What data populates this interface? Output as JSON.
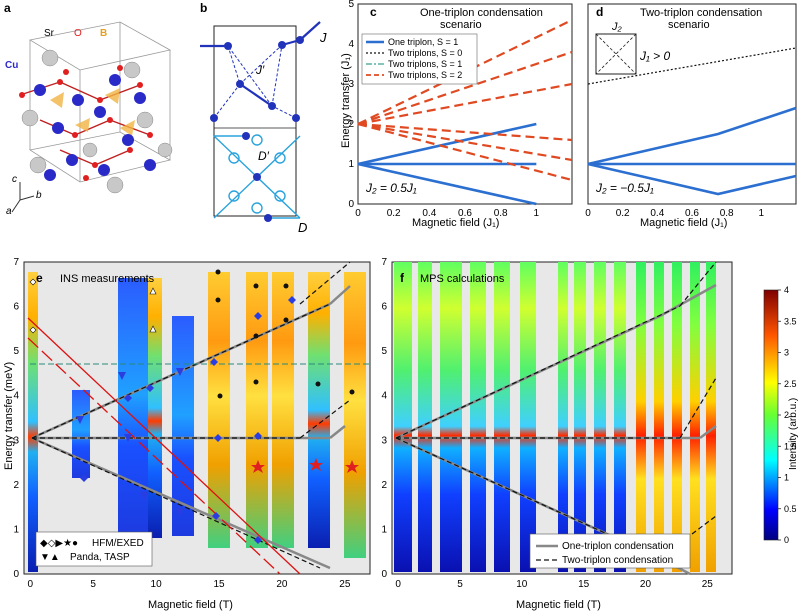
{
  "panels": {
    "a": {
      "letter": "a",
      "atoms": [
        "Sr",
        "O",
        "B",
        "Cu"
      ],
      "axes": [
        "c",
        "b",
        "a"
      ]
    },
    "b": {
      "letter": "b",
      "couplings": [
        "J",
        "J′",
        "D′",
        "D"
      ]
    },
    "c": {
      "letter": "c",
      "title": [
        "One-triplon condensation",
        "scenario"
      ],
      "legend": [
        "One triplon, S = 1",
        "Two triplons, S = 0",
        "Two triplons, S = 1",
        "Two triplons, S = 2"
      ],
      "annotation": "J₂ = 0.5J₁",
      "ylabel": "Energy transfer (J₁)",
      "xlabel": "Magnetic field (J₁)"
    },
    "d": {
      "letter": "d",
      "title": [
        "Two-triplon condensation",
        "scenario"
      ],
      "inset": {
        "j2": "J₂",
        "j1": "J₁ > 0"
      },
      "annotation": "J₂ = −0.5J₁",
      "xlabel": "Magnetic field (J₁)"
    },
    "e": {
      "letter": "e",
      "title": "INS measurements",
      "ylabel": "Energy transfer (meV)",
      "xlabel": "Magnetic field (T)",
      "legend": [
        "HFM/EXED",
        "Panda, TASP"
      ]
    },
    "f": {
      "letter": "f",
      "title": "MPS calculations",
      "xlabel": "Magnetic field (T)",
      "legend": [
        "One-triplon condensation",
        "Two-triplon condensation"
      ]
    },
    "colorbar": {
      "label": "Intensity (arb.u.)",
      "ticks": [
        "0",
        "0.5",
        "1",
        "1.5",
        "2",
        "2.5",
        "3",
        "3.5",
        "4"
      ]
    }
  },
  "chart_data": [
    {
      "type": "line",
      "panel": "c",
      "xlim": [
        0,
        1.2
      ],
      "ylim": [
        0,
        5
      ],
      "xticks": [
        "0",
        "0.2",
        "0.4",
        "0.6",
        "0.8",
        "1"
      ],
      "yticks": [
        "0",
        "1",
        "2",
        "3",
        "4",
        "5"
      ],
      "series": [
        {
          "name": "One triplon, S = 1",
          "color": "#2b6fd0",
          "x": [
            0,
            1
          ],
          "lines": [
            [
              1,
              2
            ],
            [
              1,
              1
            ],
            [
              1,
              0
            ]
          ]
        },
        {
          "name": "Two triplons, S = 2",
          "color": "#e04a22",
          "x": [
            0,
            1.2
          ],
          "lines": [
            [
              2,
              4.6
            ],
            [
              2,
              3.8
            ],
            [
              2,
              3.0
            ],
            [
              2,
              1.6
            ],
            [
              2,
              1.1
            ],
            [
              2,
              0.6
            ]
          ]
        }
      ]
    },
    {
      "type": "line",
      "panel": "d",
      "xlim": [
        0,
        1.2
      ],
      "ylim": [
        0,
        5
      ],
      "xticks": [
        "0",
        "0.2",
        "0.4",
        "0.6",
        "0.8",
        "1"
      ],
      "series": [
        {
          "name": "One triplon, S = 1",
          "color": "#2b6fd0",
          "x": [
            0,
            0.75,
            1.2
          ],
          "lines": [
            [
              1,
              1.75,
              2.4
            ],
            [
              1,
              1.0,
              1.0
            ],
            [
              1,
              0.25,
              0.7
            ]
          ]
        },
        {
          "name": "Two triplons, S = 0",
          "color": "#111111",
          "x": [
            0,
            1.2
          ],
          "lines": [
            [
              3.0,
              3.9
            ]
          ]
        }
      ]
    },
    {
      "type": "heatmap",
      "panel": "e",
      "xlim": [
        -0.5,
        27
      ],
      "ylim": [
        0,
        7
      ],
      "xticks": [
        "0",
        "5",
        "10",
        "15",
        "20",
        "25"
      ],
      "yticks": [
        "0",
        "1",
        "2",
        "3",
        "4",
        "5",
        "6",
        "7"
      ]
    },
    {
      "type": "heatmap",
      "panel": "f",
      "xlim": [
        -0.5,
        27
      ],
      "ylim": [
        0,
        7
      ],
      "xticks": [
        "0",
        "5",
        "10",
        "15",
        "20",
        "25"
      ],
      "yticks": [
        "0",
        "1",
        "2",
        "3",
        "4",
        "5",
        "6",
        "7"
      ]
    }
  ]
}
